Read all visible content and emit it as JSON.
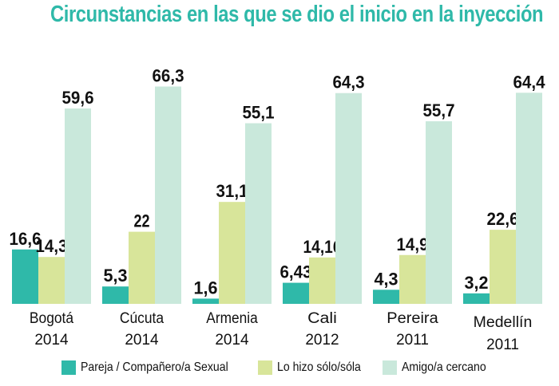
{
  "chart_data": {
    "type": "bar",
    "title": "Circunstancias en las que se dio el inicio en la inyección",
    "xlabel": "",
    "ylabel": "",
    "ylim": [
      0,
      70
    ],
    "grid": false,
    "legend_position": "bottom",
    "categories": [
      {
        "city": "Bogotá",
        "year": "2014"
      },
      {
        "city": "Cúcuta",
        "year": "2014"
      },
      {
        "city": "Armenia",
        "year": "2014"
      },
      {
        "city": "Cali",
        "year": "2012"
      },
      {
        "city": "Pereira",
        "year": "2011"
      },
      {
        "city": "Medellín",
        "year": "2011"
      }
    ],
    "series": [
      {
        "name": "Pareja / Compañero/a Sexual",
        "color": "#2fb9a9",
        "values": [
          16.6,
          5.3,
          1.6,
          6.43,
          4.3,
          3.2
        ],
        "labels": [
          "16,6",
          "5,3",
          "1,6",
          "6,43",
          "4,3",
          "3,2"
        ]
      },
      {
        "name": "Lo hizo sólo/sóla",
        "color": "#d8e59a",
        "values": [
          14.3,
          22,
          31.1,
          14.16,
          14.9,
          22.6
        ],
        "labels": [
          "14,3",
          "22",
          "31,1",
          "14,16",
          "14,9",
          "22,6"
        ]
      },
      {
        "name": "Amigo/a cercano",
        "color": "#c9e8db",
        "values": [
          59.6,
          66.3,
          55.1,
          64.3,
          55.7,
          64.4
        ],
        "labels": [
          "59,6",
          "66,3",
          "55,1",
          "64,3",
          "55,7",
          "64,4"
        ]
      }
    ]
  }
}
